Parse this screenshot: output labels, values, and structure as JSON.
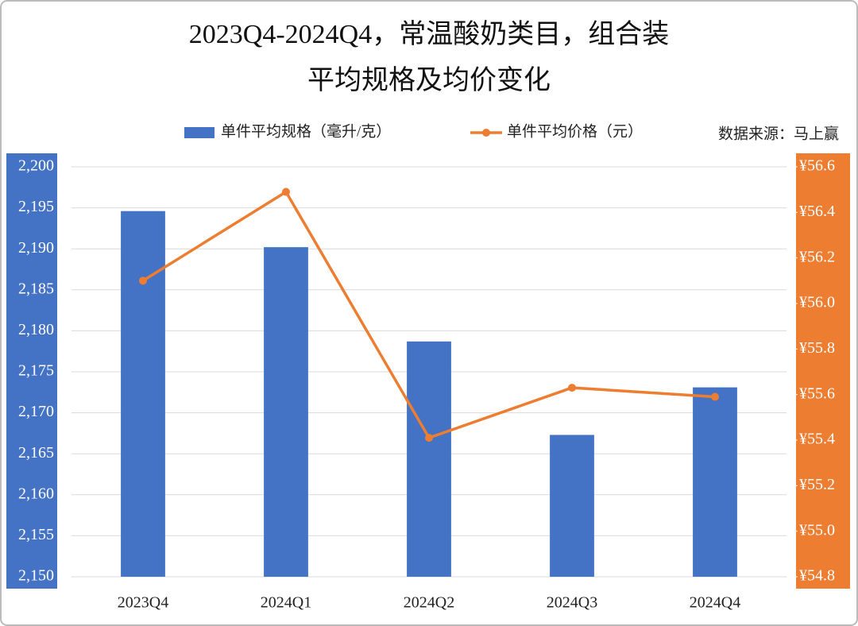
{
  "chart_data": {
    "type": "bar_line",
    "title": "2023Q4-2024Q4，常温酸奶类目，组合装",
    "subtitle": "平均规格及均价变化",
    "annotation": "数据来源：马上赢",
    "categories": [
      "2023Q4",
      "2024Q1",
      "2024Q2",
      "2024Q3",
      "2024Q4"
    ],
    "series": [
      {
        "name": "单件平均规格（毫升/克）",
        "type": "bar",
        "color": "#4472c4",
        "values": [
          2194.6,
          2190.2,
          2178.7,
          2167.3,
          2173.1
        ]
      },
      {
        "name": "单件平均价格（元）",
        "type": "line",
        "color": "#ed7d31",
        "axis": "y2",
        "values": [
          56.1,
          56.49,
          55.41,
          55.63,
          55.59
        ]
      }
    ],
    "ylim": [
      2150,
      2200
    ],
    "yticks": [
      {
        "value": 2150,
        "label": "2,150"
      },
      {
        "value": 2155,
        "label": "2,155"
      },
      {
        "value": 2160,
        "label": "2,160"
      },
      {
        "value": 2165,
        "label": "2,165"
      },
      {
        "value": 2170,
        "label": "2,170"
      },
      {
        "value": 2175,
        "label": "2,175"
      },
      {
        "value": 2180,
        "label": "2,180"
      },
      {
        "value": 2185,
        "label": "2,185"
      },
      {
        "value": 2190,
        "label": "2,190"
      },
      {
        "value": 2195,
        "label": "2,195"
      },
      {
        "value": 2200,
        "label": "2,200"
      }
    ],
    "y2lim": [
      54.8,
      56.6
    ],
    "y2ticks": [
      {
        "value": 54.8,
        "label": "¥54.8"
      },
      {
        "value": 55.0,
        "label": "¥55.0"
      },
      {
        "value": 55.2,
        "label": "¥55.2"
      },
      {
        "value": 55.4,
        "label": "¥55.4"
      },
      {
        "value": 55.6,
        "label": "¥55.6"
      },
      {
        "value": 55.8,
        "label": "¥55.8"
      },
      {
        "value": 56.0,
        "label": "¥56.0"
      },
      {
        "value": 56.2,
        "label": "¥56.2"
      },
      {
        "value": 56.4,
        "label": "¥56.4"
      },
      {
        "value": 56.6,
        "label": "¥56.6"
      }
    ],
    "grid": true
  }
}
